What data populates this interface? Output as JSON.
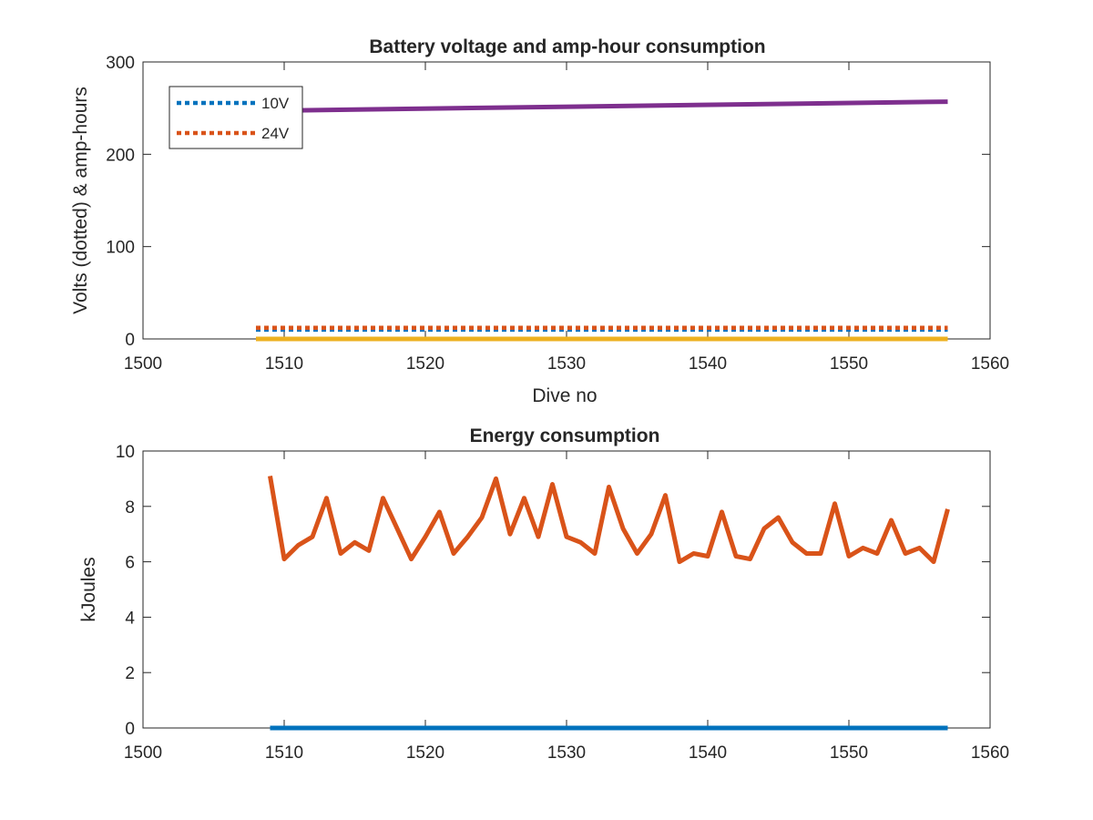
{
  "colors": {
    "blue": "#0072BD",
    "orange": "#D95319",
    "yellow": "#EDB120",
    "purple": "#7E2F8E"
  },
  "chart_data": [
    {
      "type": "line",
      "title": "Battery voltage and amp-hour consumption",
      "xlabel": "Dive no",
      "ylabel": "Volts (dotted) & amp-hours",
      "xlim": [
        1500,
        1560
      ],
      "ylim": [
        0,
        300
      ],
      "xticks": [
        1500,
        1510,
        1520,
        1530,
        1540,
        1550,
        1560
      ],
      "yticks": [
        0,
        100,
        200,
        300
      ],
      "legend": {
        "placement": "top-left",
        "entries": [
          "10V",
          "24V"
        ]
      },
      "series": [
        {
          "name": "10V",
          "style": "dotted",
          "color": "blue",
          "x": [
            1508,
            1557
          ],
          "y": [
            10,
            10
          ]
        },
        {
          "name": "24V",
          "style": "dotted",
          "color": "orange",
          "x": [
            1508,
            1557
          ],
          "y": [
            12,
            12
          ]
        },
        {
          "style": "solid",
          "color": "yellow",
          "x": [
            1508,
            1557
          ],
          "y": [
            0,
            0
          ]
        },
        {
          "style": "solid",
          "color": "purple",
          "x": [
            1508,
            1557
          ],
          "y": [
            247,
            257
          ]
        }
      ]
    },
    {
      "type": "line",
      "title": "Energy consumption",
      "xlabel": "",
      "ylabel": "kJoules",
      "xlim": [
        1500,
        1560
      ],
      "ylim": [
        0,
        10
      ],
      "xticks": [
        1500,
        1510,
        1520,
        1530,
        1540,
        1550,
        1560
      ],
      "yticks": [
        0,
        2,
        4,
        6,
        8,
        10
      ],
      "series": [
        {
          "style": "solid",
          "color": "orange",
          "x": [
            1509,
            1510,
            1511,
            1512,
            1513,
            1514,
            1515,
            1516,
            1517,
            1518,
            1519,
            1520,
            1521,
            1522,
            1523,
            1524,
            1525,
            1526,
            1527,
            1528,
            1529,
            1530,
            1531,
            1532,
            1533,
            1534,
            1535,
            1536,
            1537,
            1538,
            1539,
            1540,
            1541,
            1542,
            1543,
            1544,
            1545,
            1546,
            1547,
            1548,
            1549,
            1550,
            1551,
            1552,
            1553,
            1554,
            1555,
            1556,
            1557
          ],
          "y": [
            9.1,
            6.1,
            6.6,
            6.9,
            8.3,
            6.3,
            6.7,
            6.4,
            8.3,
            7.2,
            6.1,
            6.9,
            7.8,
            6.3,
            6.9,
            7.6,
            9.0,
            7.0,
            8.3,
            6.9,
            8.8,
            6.9,
            6.7,
            6.3,
            8.7,
            7.2,
            6.3,
            7.0,
            8.4,
            6.0,
            6.3,
            6.2,
            7.8,
            6.2,
            6.1,
            7.2,
            7.6,
            6.7,
            6.3,
            6.3,
            8.1,
            6.2,
            6.5,
            6.3,
            7.5,
            6.3,
            6.5,
            6.0,
            7.9
          ]
        },
        {
          "style": "solid",
          "color": "blue",
          "x": [
            1509,
            1557
          ],
          "y": [
            0,
            0
          ]
        }
      ]
    }
  ]
}
